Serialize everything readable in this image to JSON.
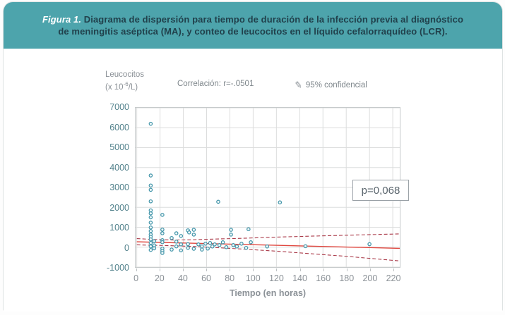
{
  "figure": {
    "label": "Figura 1.",
    "caption_line1": "Diagrama de dispersión para tiempo de duración de la infección previa al diagnóstico",
    "caption_line2": "de meningitis aséptica (MA), y conteo de leucocitos en el líquido cefalorraquídeo (LCR)."
  },
  "annotations": {
    "y_axis_title": "Leucocitos",
    "y_axis_unit_prefix": "(x 10",
    "y_axis_unit_sup": "-6",
    "y_axis_unit_suffix": "/L)",
    "correlation": "Correlación: r=-.0501",
    "confidence_icon": "pencil-line-icon",
    "confidence": "95% confidencial",
    "p_value": "p=0,068",
    "x_axis_title": "Tiempo (en horas)"
  },
  "colors": {
    "banner": "#4da4ac",
    "caption_text": "#21414c",
    "figure_label_text": "#ffffff",
    "grid": "#dcdddd",
    "plot_border": "#c6cacb",
    "marker_stroke": "#3f93a8",
    "marker_fill": "#eef7f8",
    "regression_line": "#e0473f",
    "confidence_line": "#aa3a49",
    "y_tick_text": "#53828c",
    "x_tick_text": "#8b9197"
  },
  "chart_data": {
    "type": "scatter",
    "title": "Diagrama de dispersión: tiempo de duración de la infección vs leucocitos en LCR",
    "xlabel": "Tiempo (en horas)",
    "ylabel": "Leucocitos (x 10-6/L)",
    "xlim": [
      -1,
      226
    ],
    "ylim": [
      -1000,
      7000
    ],
    "x_ticks": [
      0,
      20,
      40,
      60,
      80,
      100,
      120,
      140,
      160,
      180,
      200,
      220
    ],
    "y_ticks": [
      -1000,
      0,
      1000,
      2000,
      3000,
      4000,
      5000,
      6000,
      7000
    ],
    "grid": true,
    "correlation_r": -0.0501,
    "p_value_label": "p=0,068",
    "points": [
      [
        12,
        6200
      ],
      [
        12,
        3600
      ],
      [
        12,
        3100
      ],
      [
        12,
        2880
      ],
      [
        12,
        2300
      ],
      [
        12,
        1850
      ],
      [
        12,
        1700
      ],
      [
        12,
        1500
      ],
      [
        12,
        1230
      ],
      [
        12,
        990
      ],
      [
        12,
        810
      ],
      [
        12,
        640
      ],
      [
        12,
        520
      ],
      [
        12,
        390
      ],
      [
        12,
        215
      ],
      [
        12,
        40
      ],
      [
        12,
        -140
      ],
      [
        15,
        300
      ],
      [
        15,
        90
      ],
      [
        15,
        -60
      ],
      [
        22,
        1620
      ],
      [
        22,
        880
      ],
      [
        22,
        700
      ],
      [
        22,
        350
      ],
      [
        22,
        250
      ],
      [
        22,
        -70
      ],
      [
        22,
        -190
      ],
      [
        22,
        -290
      ],
      [
        30,
        460
      ],
      [
        30,
        -120
      ],
      [
        34,
        700
      ],
      [
        34,
        280
      ],
      [
        34,
        40
      ],
      [
        38,
        560
      ],
      [
        38,
        140
      ],
      [
        38,
        -160
      ],
      [
        44,
        845
      ],
      [
        44,
        150
      ],
      [
        44,
        -40
      ],
      [
        45,
        740
      ],
      [
        49,
        875
      ],
      [
        49,
        630
      ],
      [
        49,
        -80
      ],
      [
        53,
        140
      ],
      [
        56,
        35
      ],
      [
        56,
        -120
      ],
      [
        59,
        175
      ],
      [
        61,
        -70
      ],
      [
        63,
        210
      ],
      [
        65,
        35
      ],
      [
        67,
        140
      ],
      [
        70,
        2280
      ],
      [
        71,
        105
      ],
      [
        74,
        245
      ],
      [
        77,
        0
      ],
      [
        81,
        875
      ],
      [
        81,
        630
      ],
      [
        83,
        105
      ],
      [
        86,
        35
      ],
      [
        90,
        175
      ],
      [
        94,
        -35
      ],
      [
        96,
        900
      ],
      [
        98,
        245
      ],
      [
        112,
        35
      ],
      [
        123,
        2250
      ],
      [
        145,
        50
      ],
      [
        200,
        150
      ]
    ],
    "regression_line": {
      "x": [
        0,
        226
      ],
      "y": [
        270,
        -60
      ]
    },
    "ci_upper": [
      [
        0,
        430
      ],
      [
        15,
        385
      ],
      [
        30,
        360
      ],
      [
        45,
        365
      ],
      [
        60,
        395
      ],
      [
        90,
        445
      ],
      [
        120,
        505
      ],
      [
        150,
        555
      ],
      [
        180,
        600
      ],
      [
        226,
        665
      ]
    ],
    "ci_lower": [
      [
        0,
        115
      ],
      [
        15,
        95
      ],
      [
        30,
        75
      ],
      [
        45,
        45
      ],
      [
        60,
        5
      ],
      [
        90,
        -90
      ],
      [
        120,
        -200
      ],
      [
        150,
        -330
      ],
      [
        180,
        -460
      ],
      [
        226,
        -690
      ]
    ]
  }
}
